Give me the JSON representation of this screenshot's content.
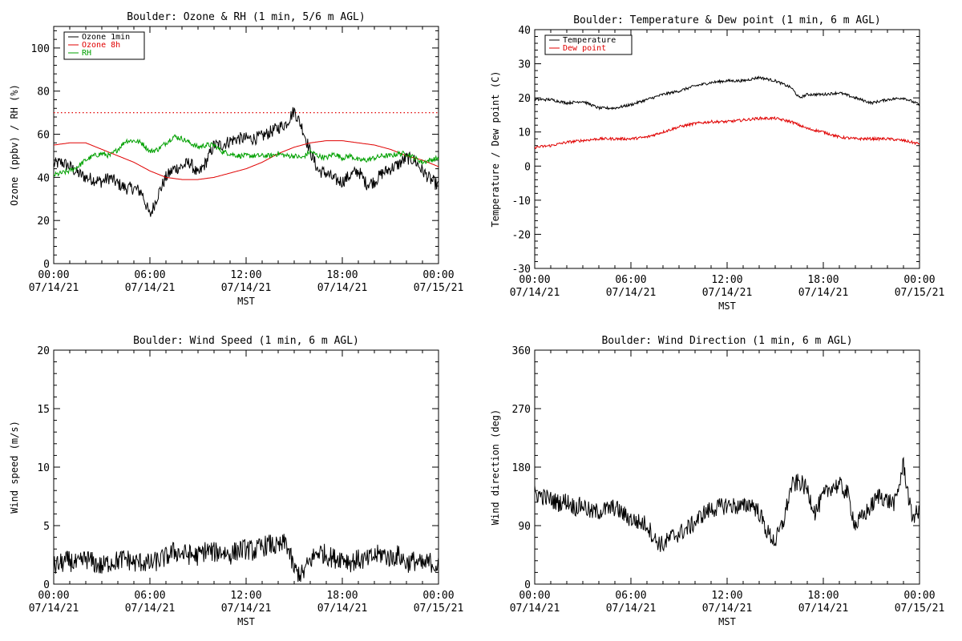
{
  "chart_data": [
    {
      "type": "line",
      "title": "Boulder: Ozone & RH (1 min, 5/6 m AGL)",
      "xlabel": "MST",
      "ylabel": "Ozone (ppbv) / RH (%)",
      "xlim": [
        "07/14/21 00:00",
        "07/15/21 00:00"
      ],
      "ylim": [
        0,
        110
      ],
      "yticks": [
        0,
        20,
        40,
        60,
        80,
        100
      ],
      "xticks": [
        {
          "line1": "00:00",
          "line2": "07/14/21",
          "t": 0
        },
        {
          "line1": "06:00",
          "line2": "07/14/21",
          "t": 6
        },
        {
          "line1": "12:00",
          "line2": "07/14/21",
          "t": 12
        },
        {
          "line1": "18:00",
          "line2": "07/14/21",
          "t": 18
        },
        {
          "line1": "00:00",
          "line2": "07/15/21",
          "t": 24
        }
      ],
      "legend_position": "top-left",
      "reference_line": {
        "y": 70,
        "color": "#e00000",
        "style": "dotted"
      },
      "series": [
        {
          "name": "Ozone 1min",
          "color": "#000000",
          "x": [
            0,
            0.5,
            1,
            1.5,
            2,
            2.5,
            3,
            3.5,
            4,
            4.5,
            5,
            5.5,
            6,
            6.5,
            7,
            7.5,
            8,
            8.5,
            9,
            9.5,
            10,
            10.5,
            11,
            11.5,
            12,
            12.5,
            13,
            13.5,
            14,
            14.5,
            15,
            15.5,
            16,
            16.5,
            17,
            17.5,
            18,
            18.5,
            19,
            19.5,
            20,
            20.5,
            21,
            21.5,
            22,
            22.5,
            23,
            23.5,
            24
          ],
          "y": [
            46,
            47,
            45,
            42,
            40,
            39,
            38,
            40,
            37,
            35,
            35,
            33,
            22,
            32,
            40,
            44,
            45,
            47,
            41,
            47,
            55,
            55,
            57,
            58,
            58,
            58,
            59,
            61,
            63,
            65,
            71,
            63,
            52,
            43,
            42,
            39,
            38,
            41,
            43,
            37,
            38,
            42,
            44,
            46,
            49,
            48,
            43,
            39,
            36
          ]
        },
        {
          "name": "Ozone 8h",
          "color": "#e00000",
          "x": [
            0,
            1,
            2,
            3,
            4,
            5,
            6,
            7,
            8,
            9,
            10,
            11,
            12,
            13,
            14,
            15,
            16,
            17,
            18,
            19,
            20,
            21,
            22,
            23,
            24
          ],
          "y": [
            55,
            56,
            56,
            53,
            50,
            47,
            43,
            40,
            39,
            39,
            40,
            42,
            44,
            47,
            51,
            54,
            56,
            57,
            57,
            56,
            55,
            53,
            50,
            48,
            45
          ]
        },
        {
          "name": "RH",
          "color": "#00a000",
          "x": [
            0,
            0.5,
            1,
            1.5,
            2,
            2.5,
            3,
            3.5,
            4,
            4.5,
            5,
            5.5,
            6,
            6.5,
            7,
            7.5,
            8,
            8.5,
            9,
            9.5,
            10,
            10.5,
            11,
            11.5,
            12,
            12.5,
            13,
            13.5,
            14,
            14.5,
            15,
            15.5,
            16,
            16.5,
            17,
            17.5,
            18,
            18.5,
            19,
            19.5,
            20,
            20.5,
            21,
            21.5,
            22,
            22.5,
            23,
            23.5,
            24
          ],
          "y": [
            41,
            42,
            43,
            45,
            48,
            50,
            51,
            50,
            53,
            57,
            57,
            56,
            52,
            53,
            56,
            59,
            58,
            56,
            54,
            55,
            55,
            52,
            51,
            50,
            50,
            50,
            50,
            50,
            51,
            50,
            50,
            49,
            52,
            50,
            49,
            51,
            49,
            50,
            48,
            48,
            49,
            50,
            50,
            51,
            51,
            49,
            47,
            48,
            49
          ]
        }
      ]
    },
    {
      "type": "line",
      "title": "Boulder: Temperature & Dew point (1 min, 6 m AGL)",
      "xlabel": "MST",
      "ylabel": "Temperature / Dew point (C)",
      "xlim": [
        "07/14/21 00:00",
        "07/15/21 00:00"
      ],
      "ylim": [
        -30,
        40
      ],
      "yticks": [
        -30,
        -20,
        -10,
        0,
        10,
        20,
        30,
        40
      ],
      "xticks": [
        {
          "line1": "00:00",
          "line2": "07/14/21",
          "t": 0
        },
        {
          "line1": "06:00",
          "line2": "07/14/21",
          "t": 6
        },
        {
          "line1": "12:00",
          "line2": "07/14/21",
          "t": 12
        },
        {
          "line1": "18:00",
          "line2": "07/14/21",
          "t": 18
        },
        {
          "line1": "00:00",
          "line2": "07/15/21",
          "t": 24
        }
      ],
      "legend_position": "top-left",
      "series": [
        {
          "name": "Temperature",
          "color": "#000000",
          "x": [
            0,
            1,
            2,
            3,
            4,
            5,
            6,
            7,
            8,
            9,
            10,
            11,
            12,
            13,
            14,
            15,
            16,
            16.5,
            17,
            18,
            19,
            20,
            21,
            22,
            23,
            24
          ],
          "y": [
            19.5,
            19.5,
            18.5,
            19,
            17,
            17,
            18,
            19.5,
            21,
            22,
            23.5,
            24.5,
            25,
            25,
            26,
            25,
            23,
            20,
            21,
            21,
            21.5,
            20,
            18.5,
            19.5,
            20,
            18
          ]
        },
        {
          "name": "Dew point",
          "color": "#e00000",
          "x": [
            0,
            1,
            2,
            3,
            4,
            5,
            6,
            7,
            8,
            9,
            10,
            11,
            12,
            13,
            14,
            15,
            16,
            17,
            18,
            19,
            20,
            21,
            22,
            23,
            24
          ],
          "y": [
            5.5,
            6,
            7,
            7.5,
            8,
            8,
            8,
            8.5,
            10,
            11.5,
            12.5,
            13,
            13,
            13.5,
            14,
            14,
            13,
            11,
            10,
            8.5,
            8,
            8,
            8,
            7.5,
            6.5
          ]
        }
      ]
    },
    {
      "type": "line",
      "title": "Boulder: Wind Speed (1 min, 6 m AGL)",
      "xlabel": "MST",
      "ylabel": "Wind speed (m/s)",
      "xlim": [
        "07/14/21 00:00",
        "07/15/21 00:00"
      ],
      "ylim": [
        0,
        20
      ],
      "yticks": [
        0,
        5,
        10,
        15,
        20
      ],
      "xticks": [
        {
          "line1": "00:00",
          "line2": "07/14/21",
          "t": 0
        },
        {
          "line1": "06:00",
          "line2": "07/14/21",
          "t": 6
        },
        {
          "line1": "12:00",
          "line2": "07/14/21",
          "t": 12
        },
        {
          "line1": "18:00",
          "line2": "07/14/21",
          "t": 18
        },
        {
          "line1": "00:00",
          "line2": "07/15/21",
          "t": 24
        }
      ],
      "series": [
        {
          "name": "",
          "color": "#000000",
          "x": [
            0,
            0.5,
            1,
            1.5,
            2,
            2.5,
            3,
            3.5,
            4,
            4.5,
            5,
            5.5,
            6,
            6.5,
            7,
            7.5,
            8,
            8.5,
            9,
            9.5,
            10,
            10.5,
            11,
            11.5,
            12,
            12.5,
            13,
            13.5,
            14,
            14.5,
            15,
            15.5,
            16,
            16.5,
            17,
            17.5,
            18,
            18.5,
            19,
            19.5,
            20,
            20.5,
            21,
            21.5,
            22,
            22.5,
            23,
            23.5,
            24
          ],
          "y": [
            1.5,
            1.8,
            2.0,
            1.6,
            2.2,
            1.8,
            1.5,
            1.9,
            2.0,
            2.2,
            1.8,
            1.9,
            1.7,
            2.0,
            2.3,
            2.8,
            2.6,
            2.5,
            2.4,
            2.9,
            2.7,
            2.8,
            2.5,
            2.9,
            3.0,
            2.8,
            3.2,
            3.4,
            3.1,
            3.6,
            1.2,
            0.8,
            2.0,
            2.8,
            2.5,
            2.2,
            2.3,
            1.9,
            2.1,
            2.0,
            2.4,
            2.6,
            2.2,
            2.5,
            1.8,
            2.0,
            1.6,
            1.9,
            1.5
          ]
        }
      ]
    },
    {
      "type": "line",
      "title": "Boulder: Wind Direction (1 min, 6 m AGL)",
      "xlabel": "MST",
      "ylabel": "Wind direction (deg)",
      "xlim": [
        "07/14/21 00:00",
        "07/15/21 00:00"
      ],
      "ylim": [
        0,
        360
      ],
      "yticks": [
        0,
        90,
        180,
        270,
        360
      ],
      "xticks": [
        {
          "line1": "00:00",
          "line2": "07/14/21",
          "t": 0
        },
        {
          "line1": "06:00",
          "line2": "07/14/21",
          "t": 6
        },
        {
          "line1": "12:00",
          "line2": "07/14/21",
          "t": 12
        },
        {
          "line1": "18:00",
          "line2": "07/14/21",
          "t": 18
        },
        {
          "line1": "00:00",
          "line2": "07/15/21",
          "t": 24
        }
      ],
      "series": [
        {
          "name": "",
          "color": "#000000",
          "x": [
            0,
            0.5,
            1,
            1.5,
            2,
            2.5,
            3,
            3.5,
            4,
            4.5,
            5,
            5.5,
            6,
            6.5,
            7,
            7.5,
            8,
            8.5,
            9,
            9.5,
            10,
            10.5,
            11,
            11.5,
            12,
            12.5,
            13,
            13.5,
            14,
            14.5,
            15,
            15.5,
            16,
            16.5,
            17,
            17.5,
            18,
            18.5,
            19,
            19.5,
            20,
            20.5,
            21,
            21.5,
            22,
            22.5,
            23,
            23.5,
            24
          ],
          "y": [
            140,
            135,
            130,
            125,
            128,
            118,
            122,
            110,
            112,
            115,
            118,
            108,
            100,
            95,
            92,
            68,
            60,
            72,
            78,
            85,
            95,
            108,
            115,
            118,
            122,
            120,
            118,
            125,
            110,
            80,
            65,
            95,
            150,
            158,
            145,
            110,
            135,
            150,
            152,
            140,
            90,
            105,
            120,
            138,
            128,
            125,
            185,
            105,
            110
          ]
        }
      ]
    }
  ]
}
